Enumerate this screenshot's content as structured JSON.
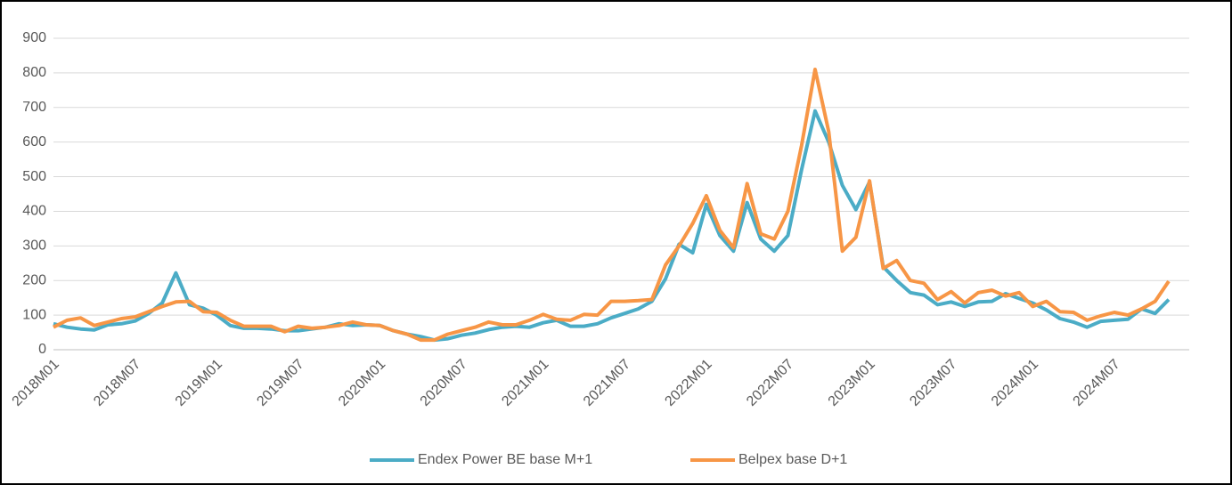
{
  "chart_data": {
    "type": "line",
    "categories": [
      "2018M01",
      null,
      null,
      null,
      null,
      null,
      "2018M07",
      null,
      null,
      null,
      null,
      null,
      "2019M01",
      null,
      null,
      null,
      null,
      null,
      "2019M07",
      null,
      null,
      null,
      null,
      null,
      "2020M01",
      null,
      null,
      null,
      null,
      null,
      "2020M07",
      null,
      null,
      null,
      null,
      null,
      "2021M01",
      null,
      null,
      null,
      null,
      null,
      "2021M07",
      null,
      null,
      null,
      null,
      null,
      "2022M01",
      null,
      null,
      null,
      null,
      null,
      "2022M07",
      null,
      null,
      null,
      null,
      null,
      "2023M01",
      null,
      null,
      null,
      null,
      null,
      "2023M07",
      null,
      null,
      null,
      null,
      null,
      "2024M01",
      null,
      null,
      null,
      null,
      null,
      "2024M07",
      null,
      null,
      null,
      null
    ],
    "series": [
      {
        "name": "Endex Power BE base M+1",
        "color": "#4bacc6",
        "values": [
          75,
          65,
          60,
          57,
          72,
          75,
          83,
          105,
          135,
          222,
          130,
          120,
          100,
          70,
          62,
          62,
          60,
          55,
          55,
          60,
          65,
          75,
          70,
          72,
          70,
          55,
          45,
          38,
          28,
          32,
          42,
          48,
          58,
          65,
          68,
          65,
          78,
          85,
          68,
          68,
          75,
          92,
          105,
          118,
          140,
          205,
          305,
          280,
          420,
          330,
          285,
          425,
          320,
          285,
          330,
          520,
          690,
          600,
          475,
          405,
          485,
          240,
          200,
          165,
          158,
          130,
          138,
          125,
          138,
          140,
          162,
          148,
          135,
          115,
          90,
          80,
          65,
          82,
          85,
          88,
          118,
          105,
          145
        ]
      },
      {
        "name": "Belpex base D+1",
        "color": "#f79646",
        "values": [
          65,
          85,
          92,
          70,
          80,
          90,
          95,
          110,
          125,
          138,
          140,
          110,
          108,
          85,
          68,
          68,
          68,
          52,
          68,
          62,
          65,
          70,
          80,
          72,
          70,
          55,
          45,
          28,
          28,
          45,
          55,
          65,
          80,
          72,
          72,
          85,
          102,
          88,
          85,
          102,
          100,
          140,
          140,
          142,
          145,
          245,
          300,
          365,
          445,
          345,
          295,
          480,
          335,
          320,
          400,
          590,
          810,
          630,
          285,
          325,
          488,
          235,
          258,
          200,
          192,
          145,
          168,
          135,
          165,
          172,
          155,
          165,
          125,
          140,
          110,
          108,
          85,
          98,
          108,
          100,
          118,
          140,
          198
        ]
      }
    ],
    "ylim": [
      0,
      900
    ],
    "yticks": [
      0,
      100,
      200,
      300,
      400,
      500,
      600,
      700,
      800,
      900
    ],
    "grid": true,
    "legend": "bottom"
  }
}
